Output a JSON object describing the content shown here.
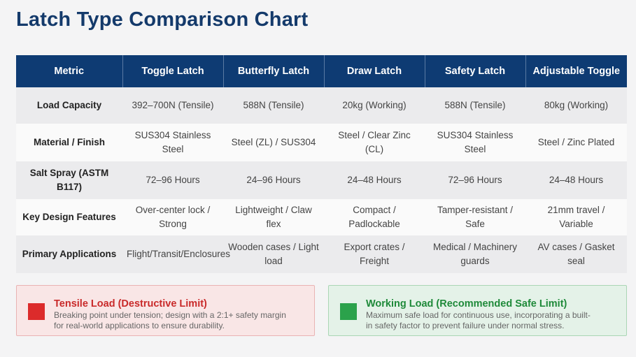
{
  "title": "Latch Type Comparison Chart",
  "table": {
    "headers": [
      "Metric",
      "Toggle Latch",
      "Butterfly Latch",
      "Draw Latch",
      "Safety Latch",
      "Adjustable Toggle"
    ],
    "rows": [
      [
        "Load Capacity",
        "392–700N (Tensile)",
        "588N (Tensile)",
        "20kg (Working)",
        "588N (Tensile)",
        "80kg (Working)"
      ],
      [
        "Material / Finish",
        "SUS304 Stainless Steel",
        "Steel (ZL) / SUS304",
        "Steel / Clear Zinc (CL)",
        "SUS304 Stainless Steel",
        "Steel / Zinc Plated"
      ],
      [
        "Salt Spray (ASTM B117)",
        "72–96 Hours",
        "24–96 Hours",
        "24–48 Hours",
        "72–96 Hours",
        "24–48 Hours"
      ],
      [
        "Key Design Features",
        "Over-center lock / Strong",
        "Lightweight / Claw flex",
        "Compact / Padlockable",
        "Tamper-resistant / Safe",
        "21mm travel / Variable"
      ],
      [
        "Primary Applications",
        "Flight/Transit/Enclosures",
        "Wooden cases / Light load",
        "Export crates / Freight",
        "Medical / Machinery guards",
        "AV cases / Gasket seal"
      ]
    ]
  },
  "legend": {
    "tensile": {
      "title": "Tensile Load (Destructive Limit)",
      "desc_line1": "Breaking point under tension; design with a 2:1+ safety margin",
      "desc_line2": "for real-world applications to ensure durability.",
      "color": "#dc2b2b"
    },
    "working": {
      "title": "Working Load (Recommended Safe Limit)",
      "desc_line1": "Maximum safe load for continuous use, incorporating a built-",
      "desc_line2": "in safety factor to prevent failure under normal stress.",
      "color": "#2ba24b"
    }
  }
}
